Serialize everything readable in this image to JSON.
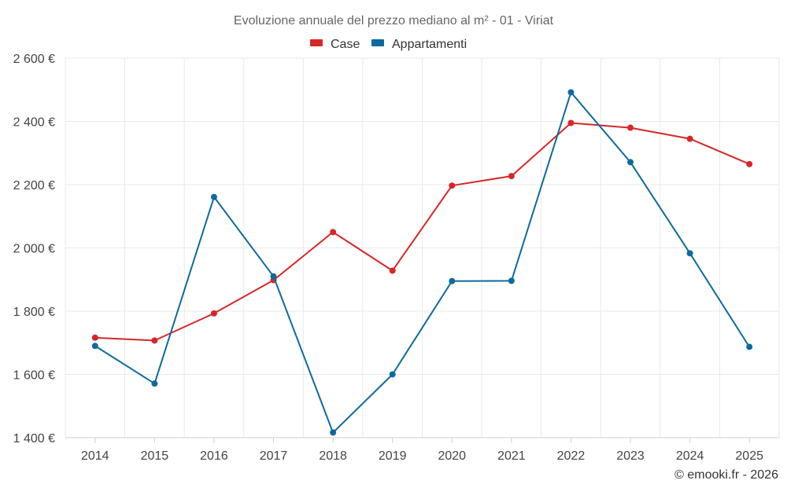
{
  "chart_data": {
    "type": "line",
    "title": "Evoluzione annuale del prezzo mediano al m² - 01 - Viriat",
    "credit": "© emooki.fr - 2026",
    "categories": [
      "2014",
      "2015",
      "2016",
      "2017",
      "2018",
      "2019",
      "2020",
      "2021",
      "2022",
      "2023",
      "2024",
      "2025"
    ],
    "ylim": [
      1400,
      2600
    ],
    "yticks": [
      1400,
      1600,
      1800,
      2000,
      2200,
      2400,
      2600
    ],
    "ytick_labels": [
      "1 400 €",
      "1 600 €",
      "1 800 €",
      "2 000 €",
      "2 200 €",
      "2 400 €",
      "2 600 €"
    ],
    "xlabel": "",
    "ylabel": "",
    "grid": true,
    "legend_position": "top-center",
    "series": [
      {
        "name": "Case",
        "color": "#d62728",
        "values": [
          1716,
          1707,
          1793,
          1898,
          2050,
          1928,
          2197,
          2227,
          2395,
          2380,
          2345,
          2265
        ]
      },
      {
        "name": "Appartamenti",
        "color": "#0d6a9e",
        "values": [
          1690,
          1571,
          2161,
          1910,
          1416,
          1600,
          1895,
          1896,
          2492,
          2271,
          1983,
          1687
        ]
      }
    ]
  }
}
